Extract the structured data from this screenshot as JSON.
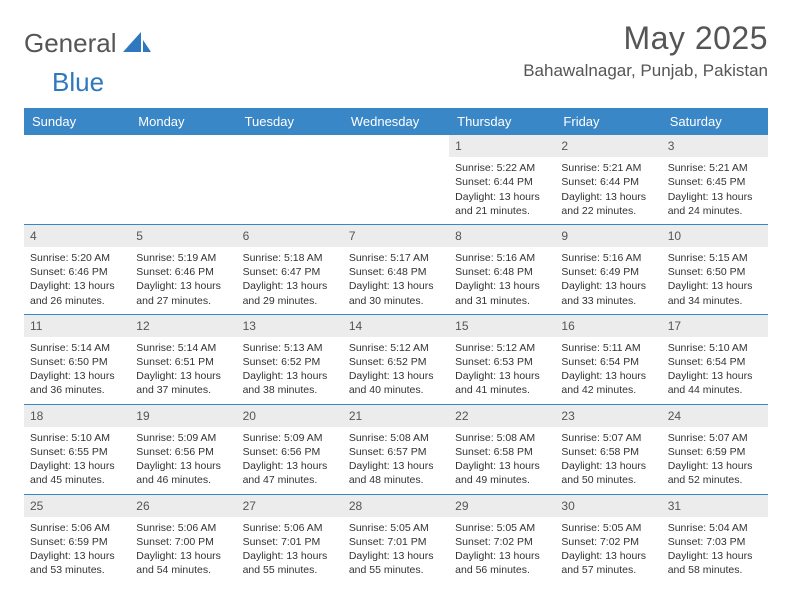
{
  "header": {
    "logo_general": "General",
    "logo_blue": "Blue",
    "month_title": "May 2025",
    "location": "Bahawalnagar, Punjab, Pakistan"
  },
  "colors": {
    "header_bg": "#3a87c8",
    "header_text": "#ffffff",
    "daynum_bg": "#ececec",
    "border": "#3a87c8",
    "text": "#333333",
    "title_text": "#555555",
    "logo_blue": "#2f78bf"
  },
  "day_labels": [
    "Sunday",
    "Monday",
    "Tuesday",
    "Wednesday",
    "Thursday",
    "Friday",
    "Saturday"
  ],
  "weeks": [
    [
      {
        "day": "",
        "sunrise": "",
        "sunset": "",
        "daylight": ""
      },
      {
        "day": "",
        "sunrise": "",
        "sunset": "",
        "daylight": ""
      },
      {
        "day": "",
        "sunrise": "",
        "sunset": "",
        "daylight": ""
      },
      {
        "day": "",
        "sunrise": "",
        "sunset": "",
        "daylight": ""
      },
      {
        "day": "1",
        "sunrise": "Sunrise: 5:22 AM",
        "sunset": "Sunset: 6:44 PM",
        "daylight": "Daylight: 13 hours and 21 minutes."
      },
      {
        "day": "2",
        "sunrise": "Sunrise: 5:21 AM",
        "sunset": "Sunset: 6:44 PM",
        "daylight": "Daylight: 13 hours and 22 minutes."
      },
      {
        "day": "3",
        "sunrise": "Sunrise: 5:21 AM",
        "sunset": "Sunset: 6:45 PM",
        "daylight": "Daylight: 13 hours and 24 minutes."
      }
    ],
    [
      {
        "day": "4",
        "sunrise": "Sunrise: 5:20 AM",
        "sunset": "Sunset: 6:46 PM",
        "daylight": "Daylight: 13 hours and 26 minutes."
      },
      {
        "day": "5",
        "sunrise": "Sunrise: 5:19 AM",
        "sunset": "Sunset: 6:46 PM",
        "daylight": "Daylight: 13 hours and 27 minutes."
      },
      {
        "day": "6",
        "sunrise": "Sunrise: 5:18 AM",
        "sunset": "Sunset: 6:47 PM",
        "daylight": "Daylight: 13 hours and 29 minutes."
      },
      {
        "day": "7",
        "sunrise": "Sunrise: 5:17 AM",
        "sunset": "Sunset: 6:48 PM",
        "daylight": "Daylight: 13 hours and 30 minutes."
      },
      {
        "day": "8",
        "sunrise": "Sunrise: 5:16 AM",
        "sunset": "Sunset: 6:48 PM",
        "daylight": "Daylight: 13 hours and 31 minutes."
      },
      {
        "day": "9",
        "sunrise": "Sunrise: 5:16 AM",
        "sunset": "Sunset: 6:49 PM",
        "daylight": "Daylight: 13 hours and 33 minutes."
      },
      {
        "day": "10",
        "sunrise": "Sunrise: 5:15 AM",
        "sunset": "Sunset: 6:50 PM",
        "daylight": "Daylight: 13 hours and 34 minutes."
      }
    ],
    [
      {
        "day": "11",
        "sunrise": "Sunrise: 5:14 AM",
        "sunset": "Sunset: 6:50 PM",
        "daylight": "Daylight: 13 hours and 36 minutes."
      },
      {
        "day": "12",
        "sunrise": "Sunrise: 5:14 AM",
        "sunset": "Sunset: 6:51 PM",
        "daylight": "Daylight: 13 hours and 37 minutes."
      },
      {
        "day": "13",
        "sunrise": "Sunrise: 5:13 AM",
        "sunset": "Sunset: 6:52 PM",
        "daylight": "Daylight: 13 hours and 38 minutes."
      },
      {
        "day": "14",
        "sunrise": "Sunrise: 5:12 AM",
        "sunset": "Sunset: 6:52 PM",
        "daylight": "Daylight: 13 hours and 40 minutes."
      },
      {
        "day": "15",
        "sunrise": "Sunrise: 5:12 AM",
        "sunset": "Sunset: 6:53 PM",
        "daylight": "Daylight: 13 hours and 41 minutes."
      },
      {
        "day": "16",
        "sunrise": "Sunrise: 5:11 AM",
        "sunset": "Sunset: 6:54 PM",
        "daylight": "Daylight: 13 hours and 42 minutes."
      },
      {
        "day": "17",
        "sunrise": "Sunrise: 5:10 AM",
        "sunset": "Sunset: 6:54 PM",
        "daylight": "Daylight: 13 hours and 44 minutes."
      }
    ],
    [
      {
        "day": "18",
        "sunrise": "Sunrise: 5:10 AM",
        "sunset": "Sunset: 6:55 PM",
        "daylight": "Daylight: 13 hours and 45 minutes."
      },
      {
        "day": "19",
        "sunrise": "Sunrise: 5:09 AM",
        "sunset": "Sunset: 6:56 PM",
        "daylight": "Daylight: 13 hours and 46 minutes."
      },
      {
        "day": "20",
        "sunrise": "Sunrise: 5:09 AM",
        "sunset": "Sunset: 6:56 PM",
        "daylight": "Daylight: 13 hours and 47 minutes."
      },
      {
        "day": "21",
        "sunrise": "Sunrise: 5:08 AM",
        "sunset": "Sunset: 6:57 PM",
        "daylight": "Daylight: 13 hours and 48 minutes."
      },
      {
        "day": "22",
        "sunrise": "Sunrise: 5:08 AM",
        "sunset": "Sunset: 6:58 PM",
        "daylight": "Daylight: 13 hours and 49 minutes."
      },
      {
        "day": "23",
        "sunrise": "Sunrise: 5:07 AM",
        "sunset": "Sunset: 6:58 PM",
        "daylight": "Daylight: 13 hours and 50 minutes."
      },
      {
        "day": "24",
        "sunrise": "Sunrise: 5:07 AM",
        "sunset": "Sunset: 6:59 PM",
        "daylight": "Daylight: 13 hours and 52 minutes."
      }
    ],
    [
      {
        "day": "25",
        "sunrise": "Sunrise: 5:06 AM",
        "sunset": "Sunset: 6:59 PM",
        "daylight": "Daylight: 13 hours and 53 minutes."
      },
      {
        "day": "26",
        "sunrise": "Sunrise: 5:06 AM",
        "sunset": "Sunset: 7:00 PM",
        "daylight": "Daylight: 13 hours and 54 minutes."
      },
      {
        "day": "27",
        "sunrise": "Sunrise: 5:06 AM",
        "sunset": "Sunset: 7:01 PM",
        "daylight": "Daylight: 13 hours and 55 minutes."
      },
      {
        "day": "28",
        "sunrise": "Sunrise: 5:05 AM",
        "sunset": "Sunset: 7:01 PM",
        "daylight": "Daylight: 13 hours and 55 minutes."
      },
      {
        "day": "29",
        "sunrise": "Sunrise: 5:05 AM",
        "sunset": "Sunset: 7:02 PM",
        "daylight": "Daylight: 13 hours and 56 minutes."
      },
      {
        "day": "30",
        "sunrise": "Sunrise: 5:05 AM",
        "sunset": "Sunset: 7:02 PM",
        "daylight": "Daylight: 13 hours and 57 minutes."
      },
      {
        "day": "31",
        "sunrise": "Sunrise: 5:04 AM",
        "sunset": "Sunset: 7:03 PM",
        "daylight": "Daylight: 13 hours and 58 minutes."
      }
    ]
  ]
}
